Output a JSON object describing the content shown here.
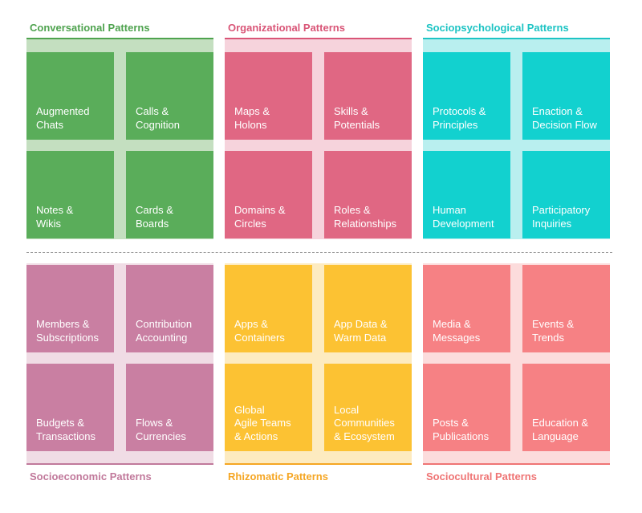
{
  "divider": true,
  "groups": [
    {
      "title": "Conversational Patterns",
      "title_color": "#4fa34f",
      "tile_color": "#5aad5a",
      "bg_color": "#c4dfc0",
      "row": "top",
      "cells": [
        "Augmented\nChats",
        "Calls &\nCognition",
        "Notes &\nWikis",
        "Cards &\nBoards"
      ]
    },
    {
      "title": "Organizational Patterns",
      "title_color": "#d95577",
      "tile_color": "#e06783",
      "bg_color": "#f6d3dc",
      "row": "top",
      "cells": [
        "Maps &\nHolons",
        "Skills &\nPotentials",
        "Domains &\nCircles",
        "Roles &\nRelationships"
      ]
    },
    {
      "title": "Sociopsychological Patterns",
      "title_color": "#1ec4c4",
      "tile_color": "#12d1cf",
      "bg_color": "#b9efef",
      "row": "top",
      "cells": [
        "Protocols &\nPrinciples",
        "Enaction &\nDecision Flow",
        "Human\nDevelopment",
        "Participatory\nInquiries"
      ]
    },
    {
      "title": "Socioeconomic Patterns",
      "title_color": "#c1799b",
      "tile_color": "#c97fa2",
      "bg_color": "#f0dce5",
      "row": "bottom",
      "cells": [
        "Members &\nSubscriptions",
        "Contribution\nAccounting",
        "Budgets &\nTransactions",
        "Flows &\nCurrencies"
      ]
    },
    {
      "title": "Rhizomatic Patterns",
      "title_color": "#f5a623",
      "tile_color": "#fcc233",
      "bg_color": "#fdebc0",
      "row": "bottom",
      "cells": [
        "Apps &\nContainers",
        "App Data &\nWarm Data",
        "Global\nAgile Teams\n& Actions",
        "Local\nCommunities\n& Ecosystem"
      ]
    },
    {
      "title": "Sociocultural Patterns",
      "title_color": "#ef7575",
      "tile_color": "#f68184",
      "bg_color": "#fcdcdc",
      "row": "bottom",
      "cells": [
        "Media &\nMessages",
        "Events &\nTrends",
        "Posts &\nPublications",
        "Education &\nLanguage"
      ]
    }
  ]
}
